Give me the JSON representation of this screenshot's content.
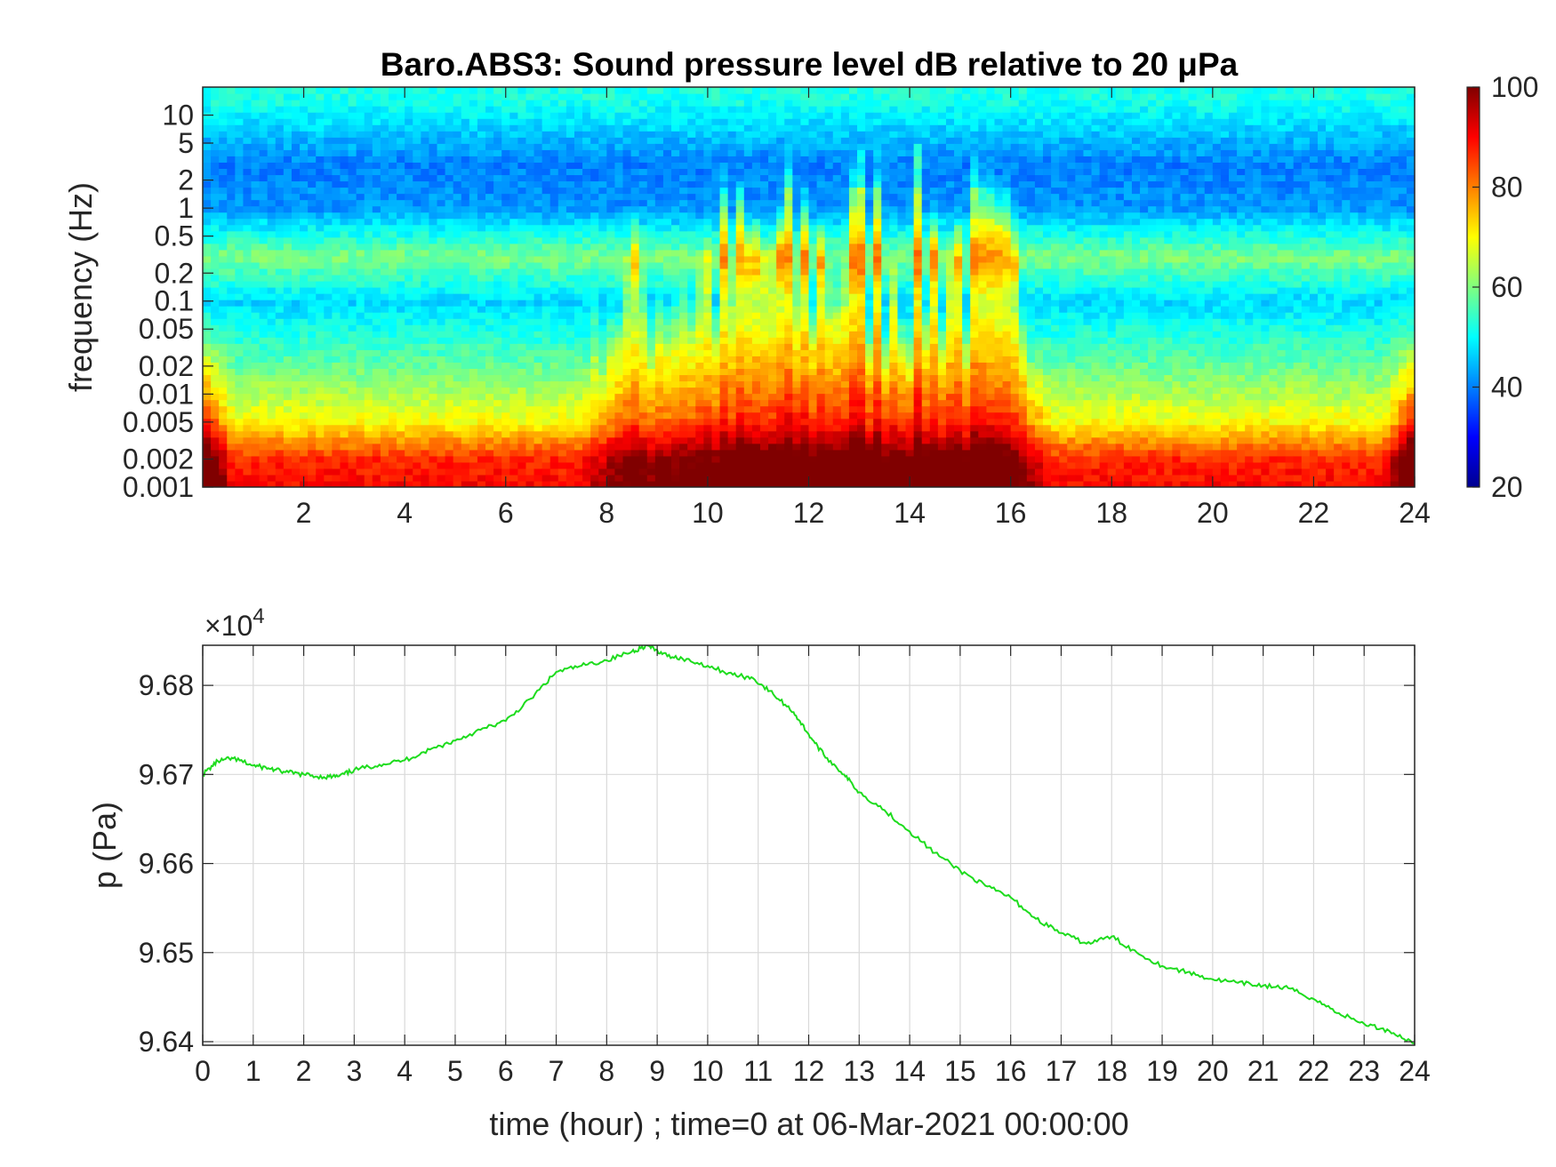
{
  "chart_data": [
    {
      "type": "heatmap",
      "title": "Baro.ABS3: Sound pressure level dB relative to 20 μPa",
      "xlabel": "",
      "ylabel": "frequency (Hz)",
      "xlim": [
        0,
        24
      ],
      "ylim": [
        0.001,
        20
      ],
      "y_scale": "log",
      "x_ticks": [
        2,
        4,
        6,
        8,
        10,
        12,
        14,
        16,
        18,
        20,
        22,
        24
      ],
      "y_ticks": [
        0.001,
        0.002,
        0.005,
        0.01,
        0.02,
        0.05,
        0.1,
        0.2,
        0.5,
        1,
        2,
        5,
        10
      ],
      "y_tick_labels": [
        "0.001",
        "0.002",
        "0.005",
        "0.01",
        "0.02",
        "0.05",
        "0.1",
        "0.2",
        "0.5",
        "1",
        "2",
        "5",
        "10"
      ],
      "colorbar": {
        "ticks": [
          20,
          40,
          60,
          80,
          100
        ],
        "clim": [
          20,
          100
        ],
        "colormap": "jet"
      },
      "background_levels_db": [
        {
          "freq": 15,
          "db": 52
        },
        {
          "freq": 3,
          "db": 40
        },
        {
          "freq": 1,
          "db": 42
        },
        {
          "freq": 0.3,
          "db": 60
        },
        {
          "freq": 0.1,
          "db": 47
        },
        {
          "freq": 0.02,
          "db": 58
        },
        {
          "freq": 0.005,
          "db": 70
        },
        {
          "freq": 0.002,
          "db": 87
        },
        {
          "freq": 0.001,
          "db": 90
        }
      ],
      "activity_envelope": [
        {
          "hour": 0,
          "level": 0
        },
        {
          "hour": 7.4,
          "level": 0
        },
        {
          "hour": 8.2,
          "level": 0.6
        },
        {
          "hour": 10,
          "level": 0.8
        },
        {
          "hour": 12,
          "level": 0.95
        },
        {
          "hour": 13,
          "level": 1.0
        },
        {
          "hour": 15,
          "level": 0.95
        },
        {
          "hour": 16.3,
          "level": 0.7
        },
        {
          "hour": 16.8,
          "level": 0
        },
        {
          "hour": 24,
          "level": 0
        }
      ]
    },
    {
      "type": "line",
      "title": "",
      "xlabel": "time (hour) ; time=0 at 06-Mar-2021 00:00:00",
      "ylabel": "p (Pa)",
      "y_multiplier": "×10",
      "y_multiplier_exp": "4",
      "xlim": [
        0,
        24
      ],
      "ylim": [
        96396,
        96845
      ],
      "x_ticks": [
        0,
        1,
        2,
        3,
        4,
        5,
        6,
        7,
        8,
        9,
        10,
        11,
        12,
        13,
        14,
        15,
        16,
        17,
        18,
        19,
        20,
        21,
        22,
        23,
        24
      ],
      "y_ticks": [
        9.64,
        9.65,
        9.66,
        9.67,
        9.68
      ],
      "y_tick_labels": [
        "9.64",
        "9.65",
        "9.66",
        "9.67",
        "9.68"
      ],
      "grid": true,
      "line_color": "#1edc1e",
      "x": [
        0,
        0.3,
        0.6,
        1.0,
        1.3,
        1.6,
        2.0,
        2.4,
        2.7,
        3.0,
        3.5,
        4.0,
        4.5,
        5.0,
        5.5,
        6.0,
        6.5,
        7.0,
        7.5,
        8.0,
        8.5,
        8.8,
        9.1,
        9.5,
        10.0,
        10.5,
        10.9,
        11.3,
        11.7,
        12.0,
        12.3,
        12.7,
        13.0,
        13.5,
        14.0,
        14.5,
        15.0,
        15.5,
        16.0,
        16.5,
        17.0,
        17.5,
        18.0,
        18.5,
        19.0,
        19.5,
        20.0,
        20.5,
        21.0,
        21.5,
        22.0,
        22.5,
        23.0,
        23.5,
        24.0
      ],
      "y": [
        96700,
        96715,
        96718,
        96710,
        96707,
        96703,
        96700,
        96697,
        96698,
        96705,
        96711,
        96716,
        96728,
        96738,
        96750,
        96760,
        96785,
        96815,
        96822,
        96828,
        96838,
        96845,
        96835,
        96830,
        96822,
        96812,
        96808,
        96790,
        96770,
        96745,
        96722,
        96700,
        96680,
        96660,
        96636,
        96612,
        96592,
        96575,
        96562,
        96538,
        96522,
        96510,
        96518,
        96500,
        96485,
        96478,
        96470,
        96466,
        96463,
        96460,
        96448,
        96432,
        96420,
        96412,
        96398
      ]
    }
  ]
}
